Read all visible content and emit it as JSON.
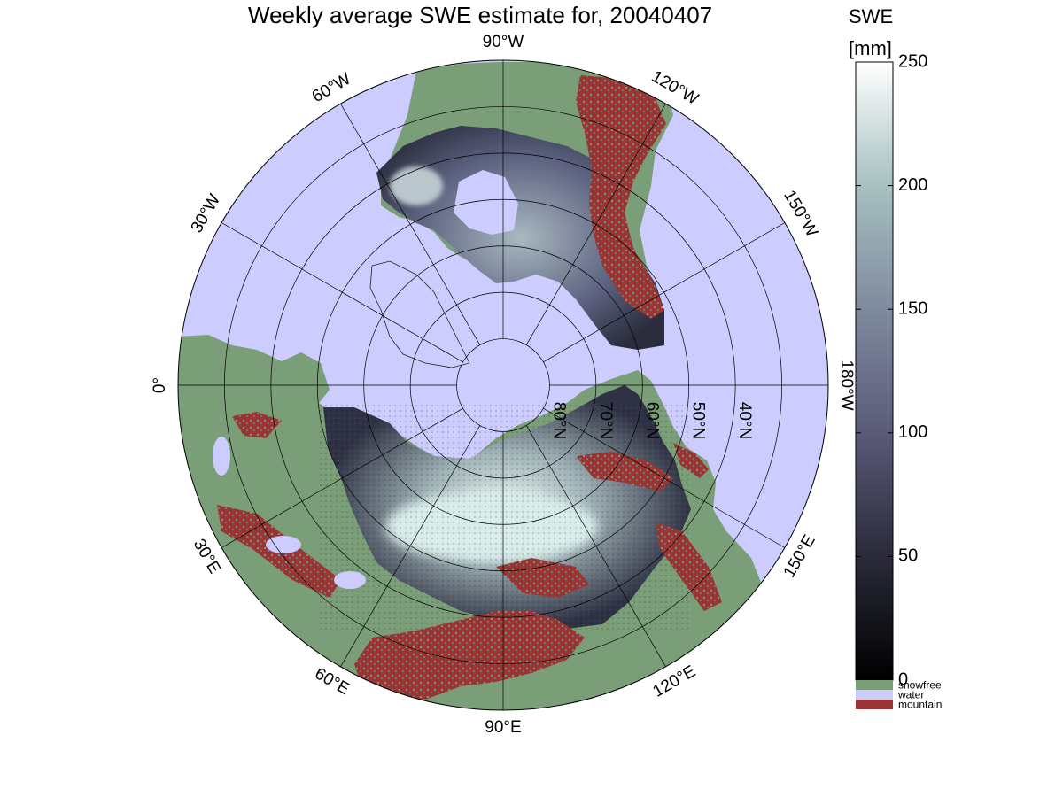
{
  "title": "Weekly average SWE estimate for, 20040407",
  "longitude_labels": [
    {
      "id": "lon-90w",
      "lon": -90,
      "text": "90°W"
    },
    {
      "id": "lon-120w",
      "lon": -120,
      "text": "120°W"
    },
    {
      "id": "lon-150w",
      "lon": -150,
      "text": "150°W"
    },
    {
      "id": "lon-180w",
      "lon": 180,
      "text": "180°W"
    },
    {
      "id": "lon-150e",
      "lon": 150,
      "text": "150°E"
    },
    {
      "id": "lon-120e",
      "lon": 120,
      "text": "120°E"
    },
    {
      "id": "lon-90e",
      "lon": 90,
      "text": "90°E"
    },
    {
      "id": "lon-60e",
      "lon": 60,
      "text": "60°E"
    },
    {
      "id": "lon-30e",
      "lon": 30,
      "text": "30°E"
    },
    {
      "id": "lon-0",
      "lon": 0,
      "text": "0°"
    },
    {
      "id": "lon-30w",
      "lon": -30,
      "text": "30°W"
    },
    {
      "id": "lon-60w",
      "lon": -60,
      "text": "60°W"
    }
  ],
  "latitude_labels": [
    {
      "id": "lat-80n",
      "lat": 80,
      "text": "80°N"
    },
    {
      "id": "lat-70n",
      "lat": 70,
      "text": "70°N"
    },
    {
      "id": "lat-60n",
      "lat": 60,
      "text": "60°N"
    },
    {
      "id": "lat-50n",
      "lat": 50,
      "text": "50°N"
    },
    {
      "id": "lat-40n",
      "lat": 40,
      "text": "40°N"
    }
  ],
  "colorbar": {
    "title_line1": "SWE",
    "title_line2": "[mm]",
    "min": 0,
    "max": 250,
    "ticks": [
      0,
      50,
      100,
      150,
      200,
      250
    ],
    "gradient_colors": [
      "#000000",
      "#2a2a3a",
      "#5a5a78",
      "#7f8a9e",
      "#a7c0c0",
      "#ffffff"
    ],
    "categories": [
      {
        "id": "snowfree",
        "label": "snowfree",
        "color": "#7a9e78"
      },
      {
        "id": "water",
        "label": "water",
        "color": "#ccccff"
      },
      {
        "id": "mountain",
        "label": "mountain",
        "color": "#9b3434"
      }
    ]
  },
  "colors": {
    "water": "#ccccff",
    "land_snowfree": "#7a9e78",
    "mountain": "#9b3434",
    "snow_low": "#15151e",
    "snow_mid": "#5f6683",
    "snow_high": "#d8ecea",
    "grid": "#000000"
  }
}
